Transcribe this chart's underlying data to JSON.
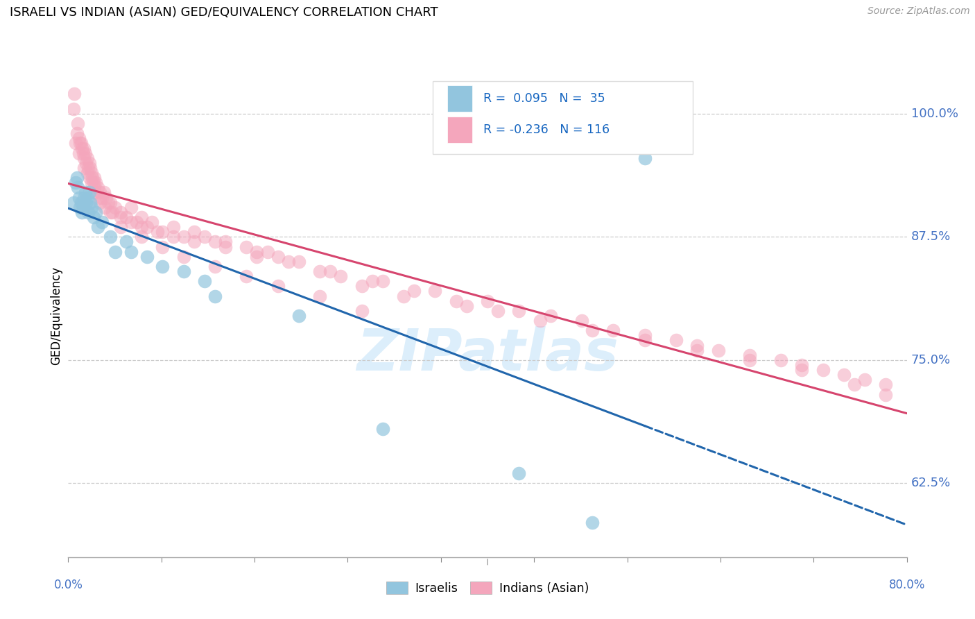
{
  "title": "ISRAELI VS INDIAN (ASIAN) GED/EQUIVALENCY CORRELATION CHART",
  "source": "Source: ZipAtlas.com",
  "ylabel": "GED/Equivalency",
  "xmin": 0.0,
  "xmax": 80.0,
  "ymin": 55.0,
  "ymax": 104.0,
  "yticks": [
    62.5,
    75.0,
    87.5,
    100.0
  ],
  "ytick_labels": [
    "62.5%",
    "75.0%",
    "87.5%",
    "100.0%"
  ],
  "blue_color": "#92c5de",
  "pink_color": "#f4a6bc",
  "blue_edge_color": "#92c5de",
  "pink_edge_color": "#f4a6bc",
  "blue_line_color": "#2166ac",
  "pink_line_color": "#d6456e",
  "blue_label_color": "#1565C0",
  "right_tick_color": "#4472C4",
  "watermark_text": "ZIPatlas",
  "watermark_color": "#dceefb",
  "israelis_label": "Israelis",
  "indians_label": "Indians (Asian)",
  "blue_scatter_x": [
    0.5,
    0.7,
    0.8,
    0.9,
    1.0,
    1.1,
    1.2,
    1.3,
    1.4,
    1.5,
    1.6,
    1.7,
    1.8,
    1.9,
    2.0,
    2.1,
    2.2,
    2.4,
    2.6,
    2.8,
    3.2,
    4.0,
    5.5,
    6.0,
    7.5,
    9.0,
    11.0,
    13.0,
    14.0,
    22.0,
    30.0,
    43.0,
    50.0,
    55.0,
    4.5
  ],
  "blue_scatter_y": [
    91.0,
    93.0,
    93.5,
    92.5,
    91.5,
    90.5,
    91.0,
    90.0,
    90.5,
    91.5,
    92.0,
    91.0,
    91.5,
    90.0,
    92.0,
    91.0,
    90.5,
    89.5,
    90.0,
    88.5,
    89.0,
    87.5,
    87.0,
    86.0,
    85.5,
    84.5,
    84.0,
    83.0,
    81.5,
    79.5,
    68.0,
    63.5,
    58.5,
    95.5,
    86.0
  ],
  "pink_scatter_x": [
    0.5,
    0.6,
    0.8,
    0.9,
    1.0,
    1.1,
    1.2,
    1.3,
    1.4,
    1.5,
    1.6,
    1.7,
    1.8,
    1.9,
    2.0,
    2.1,
    2.2,
    2.3,
    2.4,
    2.5,
    2.6,
    2.8,
    3.0,
    3.2,
    3.4,
    3.6,
    3.8,
    4.0,
    4.5,
    5.0,
    5.5,
    6.0,
    6.5,
    7.0,
    7.5,
    8.0,
    9.0,
    10.0,
    11.0,
    12.0,
    13.0,
    14.0,
    15.0,
    17.0,
    18.0,
    19.0,
    20.0,
    22.0,
    24.0,
    26.0,
    28.0,
    30.0,
    32.0,
    35.0,
    38.0,
    40.0,
    43.0,
    46.0,
    49.0,
    52.0,
    55.0,
    58.0,
    60.0,
    62.0,
    65.0,
    68.0,
    70.0,
    72.0,
    74.0,
    76.0,
    78.0,
    1.5,
    1.8,
    2.2,
    2.5,
    3.0,
    3.5,
    4.2,
    5.0,
    6.0,
    7.0,
    8.5,
    10.0,
    12.0,
    15.0,
    18.0,
    21.0,
    25.0,
    29.0,
    33.0,
    37.0,
    41.0,
    45.0,
    50.0,
    55.0,
    60.0,
    65.0,
    70.0,
    75.0,
    78.0,
    0.7,
    1.0,
    1.5,
    2.0,
    2.5,
    3.0,
    4.0,
    5.0,
    7.0,
    9.0,
    11.0,
    14.0,
    17.0,
    20.0,
    24.0,
    28.0
  ],
  "pink_scatter_y": [
    100.5,
    102.0,
    98.0,
    99.0,
    97.5,
    97.0,
    97.0,
    96.5,
    96.0,
    96.5,
    96.0,
    95.0,
    95.5,
    94.5,
    95.0,
    94.5,
    94.0,
    93.5,
    93.0,
    93.5,
    93.0,
    92.5,
    92.0,
    91.5,
    92.0,
    91.5,
    91.0,
    91.0,
    90.5,
    90.0,
    89.5,
    90.5,
    89.0,
    89.5,
    88.5,
    89.0,
    88.0,
    88.5,
    87.5,
    88.0,
    87.5,
    87.0,
    87.0,
    86.5,
    86.0,
    86.0,
    85.5,
    85.0,
    84.0,
    83.5,
    82.5,
    83.0,
    81.5,
    82.0,
    80.5,
    81.0,
    80.0,
    79.5,
    79.0,
    78.0,
    77.5,
    77.0,
    76.5,
    76.0,
    75.5,
    75.0,
    74.5,
    74.0,
    73.5,
    73.0,
    72.5,
    95.5,
    94.0,
    93.0,
    92.5,
    91.5,
    90.5,
    90.0,
    89.5,
    89.0,
    88.5,
    88.0,
    87.5,
    87.0,
    86.5,
    85.5,
    85.0,
    84.0,
    83.0,
    82.0,
    81.0,
    80.0,
    79.0,
    78.0,
    77.0,
    76.0,
    75.0,
    74.0,
    72.5,
    71.5,
    97.0,
    96.0,
    94.5,
    93.5,
    92.0,
    91.0,
    90.0,
    88.5,
    87.5,
    86.5,
    85.5,
    84.5,
    83.5,
    82.5,
    81.5,
    80.0
  ]
}
